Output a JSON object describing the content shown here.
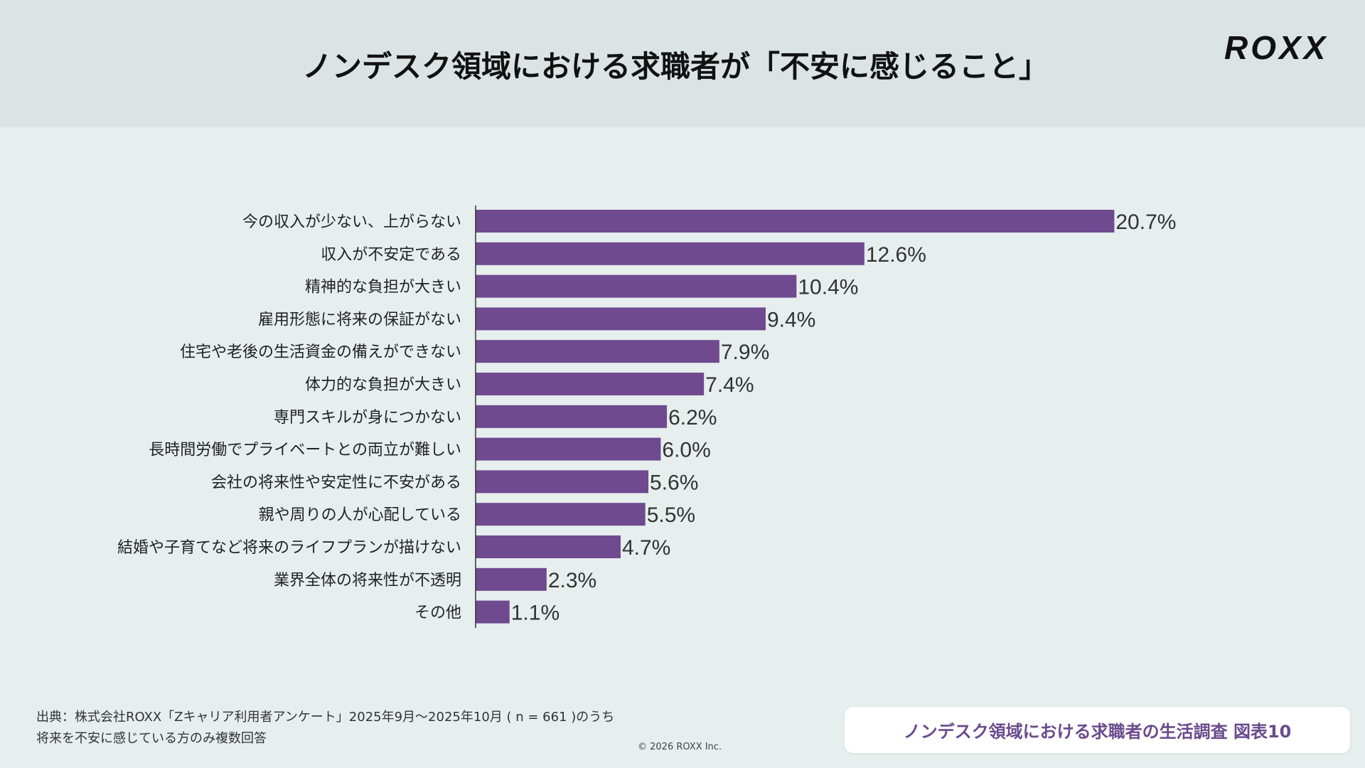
{
  "header": {
    "title": "ノンデスク領域における求職者が「不安に感じること」",
    "logo": "ROXX"
  },
  "chart_data": {
    "type": "bar",
    "orientation": "horizontal",
    "categories": [
      "今の収入が少ない、上がらない",
      "収入が不安定である",
      "精神的な負担が大きい",
      "雇用形態に将来の保証がない",
      "住宅や老後の生活資金の備えができない",
      "体力的な負担が大きい",
      "専門スキルが身につかない",
      "長時間労働でプライベートとの両立が難しい",
      "会社の将来性や安定性に不安がある",
      "親や周りの人が心配している",
      "結婚や子育てなど将来のライフプランが描けない",
      "業界全体の将来性が不透明",
      "その他"
    ],
    "values": [
      20.7,
      12.6,
      10.4,
      9.4,
      7.9,
      7.4,
      6.2,
      6.0,
      5.6,
      5.5,
      4.7,
      2.3,
      1.1
    ],
    "value_labels": [
      "20.7%",
      "12.6%",
      "10.4%",
      "9.4%",
      "7.9%",
      "7.4%",
      "6.2%",
      "6.0%",
      "5.6%",
      "5.5%",
      "4.7%",
      "2.3%",
      "1.1%"
    ],
    "unit": "%",
    "bar_color": "#6f4a8e",
    "grid": false
  },
  "footer": {
    "source_line1": "出典：株式会社ROXX「Zキャリア利用者アンケート」2025年9月〜2025年10月 ( n = 661 )のうち",
    "source_line2": "将来を不安に感じている方のみ複数回答",
    "copyright": "© 2026 ROXX Inc.",
    "badge": "ノンデスク領域における求職者の生活調査 図表10"
  }
}
